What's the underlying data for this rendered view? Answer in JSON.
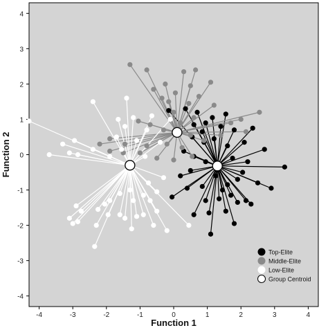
{
  "chart_data": {
    "type": "scatter",
    "xlabel": "Function 1",
    "ylabel": "Function 2",
    "xlim": [
      -4.3,
      4.3
    ],
    "ylim": [
      -4.3,
      4.3
    ],
    "xticks": [
      "-4",
      "-3",
      "-2",
      "-1",
      "0",
      "1",
      "2",
      "3",
      "4"
    ],
    "yticks": [
      "-4",
      "-3",
      "-2",
      "-1",
      "0",
      "1",
      "2",
      "3",
      "4"
    ],
    "grid": false,
    "legend_position": "bottom-right",
    "background_color": "#d4d4d4",
    "series": [
      {
        "name": "Top-Elite",
        "color": "#000000",
        "centroid": [
          1.3,
          -0.32
        ],
        "points": [
          [
            1.1,
            -2.25
          ],
          [
            1.8,
            -1.95
          ],
          [
            0.6,
            -1.7
          ],
          [
            1.55,
            -1.6
          ],
          [
            1.05,
            -1.65
          ],
          [
            2.3,
            -1.4
          ],
          [
            2.15,
            -1.3
          ],
          [
            1.9,
            -1.35
          ],
          [
            1.35,
            -1.25
          ],
          [
            0.95,
            -1.3
          ],
          [
            1.7,
            -1.15
          ],
          [
            1.45,
            -1.0
          ],
          [
            0.85,
            -0.9
          ],
          [
            0.4,
            -0.95
          ],
          [
            -0.05,
            -1.2
          ],
          [
            2.5,
            -0.8
          ],
          [
            2.9,
            -0.95
          ],
          [
            1.9,
            -0.7
          ],
          [
            1.6,
            -0.85
          ],
          [
            2.05,
            -0.5
          ],
          [
            1.25,
            -0.6
          ],
          [
            0.5,
            -0.45
          ],
          [
            0.2,
            -0.6
          ],
          [
            3.3,
            -0.35
          ],
          [
            2.2,
            -0.2
          ],
          [
            1.75,
            -0.1
          ],
          [
            0.95,
            -0.2
          ],
          [
            0.6,
            -0.05
          ],
          [
            0.3,
            0.1
          ],
          [
            2.7,
            0.15
          ],
          [
            2.1,
            0.35
          ],
          [
            1.6,
            0.25
          ],
          [
            1.2,
            0.45
          ],
          [
            0.9,
            0.35
          ],
          [
            0.55,
            0.5
          ],
          [
            1.8,
            0.7
          ],
          [
            1.4,
            0.8
          ],
          [
            0.95,
            0.9
          ],
          [
            0.6,
            0.85
          ],
          [
            2.35,
            0.75
          ],
          [
            1.15,
            1.05
          ],
          [
            0.7,
            1.2
          ],
          [
            0.35,
            1.3
          ],
          [
            -0.15,
            1.25
          ],
          [
            1.55,
            1.15
          ],
          [
            0.85,
            0.65
          ]
        ]
      },
      {
        "name": "Middle-Elite",
        "color": "#8a8a8a",
        "centroid": [
          0.1,
          0.63
        ],
        "points": [
          [
            -1.3,
            2.55
          ],
          [
            -0.8,
            2.4
          ],
          [
            0.3,
            2.35
          ],
          [
            0.65,
            2.4
          ],
          [
            1.1,
            2.05
          ],
          [
            0.5,
            1.95
          ],
          [
            -0.25,
            2.0
          ],
          [
            -0.6,
            1.85
          ],
          [
            0.05,
            1.75
          ],
          [
            -0.35,
            1.6
          ],
          [
            0.75,
            1.65
          ],
          [
            -0.15,
            1.5
          ],
          [
            0.45,
            1.45
          ],
          [
            1.2,
            1.4
          ],
          [
            2.55,
            1.2
          ],
          [
            2.0,
            1.0
          ],
          [
            1.7,
            0.9
          ],
          [
            -1.05,
            0.95
          ],
          [
            -0.7,
            0.85
          ],
          [
            -0.3,
            0.7
          ],
          [
            0.5,
            0.55
          ],
          [
            2.15,
            0.65
          ],
          [
            1.4,
            0.55
          ],
          [
            -1.9,
            0.45
          ],
          [
            -1.45,
            0.3
          ],
          [
            -0.8,
            0.25
          ],
          [
            -0.2,
            0.3
          ],
          [
            0.25,
            0.2
          ],
          [
            0.9,
            0.4
          ],
          [
            -2.2,
            0.3
          ],
          [
            -1.5,
            0.05
          ],
          [
            -1.0,
            0.05
          ],
          [
            -0.5,
            -0.1
          ],
          [
            0.0,
            -0.15
          ],
          [
            0.55,
            -0.05
          ],
          [
            0.2,
            0.9
          ],
          [
            0.0,
            1.2
          ],
          [
            0.6,
            1.05
          ],
          [
            -1.9,
            0.1
          ]
        ]
      },
      {
        "name": "Low-Elite",
        "color": "#ffffff",
        "centroid": [
          -1.3,
          -0.3
        ],
        "points": [
          [
            -4.3,
            0.95
          ],
          [
            -3.7,
            0.0
          ],
          [
            -3.3,
            0.3
          ],
          [
            -3.1,
            0.05
          ],
          [
            -2.95,
            0.4
          ],
          [
            -2.85,
            0.0
          ],
          [
            -1.9,
            -0.05
          ],
          [
            -2.4,
            0.15
          ],
          [
            -1.7,
            0.5
          ],
          [
            -1.45,
            0.8
          ],
          [
            -1.55,
            0.15
          ],
          [
            -1.1,
            0.4
          ],
          [
            -0.8,
            0.7
          ],
          [
            -1.4,
            1.6
          ],
          [
            -1.65,
            1.0
          ],
          [
            -2.4,
            1.5
          ],
          [
            -1.2,
            1.05
          ],
          [
            -0.65,
            1.1
          ],
          [
            -0.1,
            1.0
          ],
          [
            -0.4,
            0.35
          ],
          [
            -0.85,
            -0.05
          ],
          [
            -0.3,
            -0.65
          ],
          [
            -0.75,
            -0.8
          ],
          [
            -0.5,
            -1.05
          ],
          [
            -0.9,
            -1.15
          ],
          [
            -1.3,
            -1.0
          ],
          [
            -1.6,
            -1.1
          ],
          [
            -1.9,
            -1.3
          ],
          [
            -1.2,
            -1.3
          ],
          [
            -0.9,
            -1.7
          ],
          [
            -2.05,
            -1.4
          ],
          [
            -1.95,
            -1.7
          ],
          [
            -2.25,
            -1.55
          ],
          [
            -2.3,
            -2.0
          ],
          [
            -1.45,
            -1.8
          ],
          [
            -1.1,
            -1.75
          ],
          [
            -1.6,
            -1.7
          ],
          [
            -2.35,
            -2.6
          ],
          [
            -2.75,
            -1.6
          ],
          [
            -2.85,
            -1.9
          ],
          [
            -3.0,
            -1.95
          ],
          [
            -2.9,
            -1.45
          ],
          [
            -3.1,
            -1.8
          ],
          [
            -1.25,
            -2.1
          ],
          [
            -0.5,
            -1.6
          ],
          [
            -0.6,
            -2.0
          ],
          [
            -0.2,
            -2.15
          ],
          [
            0.45,
            -2.0
          ],
          [
            -0.7,
            -1.3
          ]
        ]
      }
    ]
  },
  "legend": {
    "items": [
      {
        "label": "Top-Elite",
        "color": "#000000"
      },
      {
        "label": "Middle-Elite",
        "color": "#8a8a8a"
      },
      {
        "label": "Low-Elite",
        "color": "#ffffff"
      },
      {
        "label": "Group Centroid",
        "color": "#ffffff"
      }
    ]
  }
}
